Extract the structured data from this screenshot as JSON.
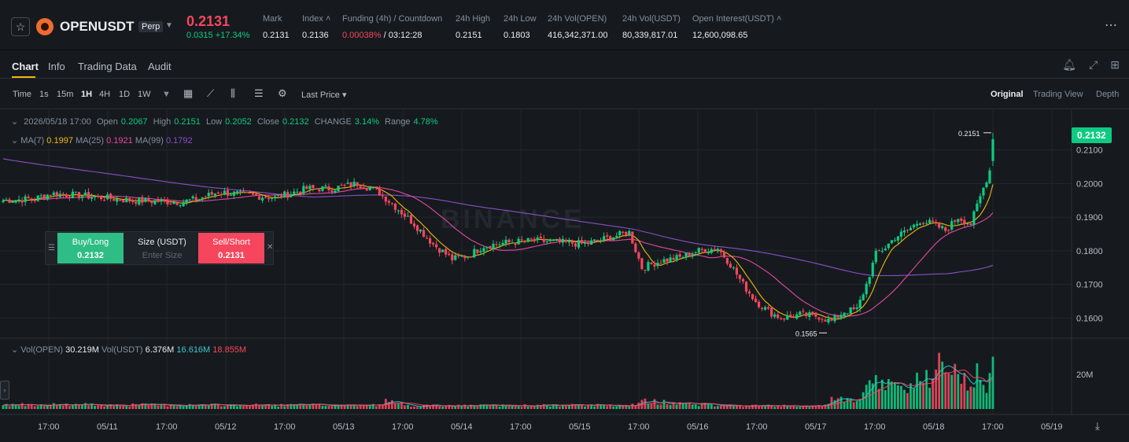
{
  "header": {
    "symbol": "OPENUSDT",
    "contract": "Perp",
    "last_price": "0.2131",
    "change": "0.0315 +17.34%",
    "stats": [
      {
        "label": "Mark",
        "value": "0.2131"
      },
      {
        "label": "Index ˄",
        "value": "0.2136"
      },
      {
        "label": "Funding (4h) / Countdown",
        "value_red": "0.00038%",
        "value": " / 03:12:28"
      },
      {
        "label": "24h High",
        "value": "0.2151"
      },
      {
        "label": "24h Low",
        "value": "0.1803"
      },
      {
        "label": "24h Vol(OPEN)",
        "value": "416,342,371.00"
      },
      {
        "label": "24h Vol(USDT)",
        "value": "80,339,817.01"
      },
      {
        "label": "Open Interest(USDT) ˄",
        "value": "12,600,098.65"
      }
    ],
    "more_icon": "more-dots-icon"
  },
  "tabs": [
    "Chart",
    "Info",
    "Trading Data",
    "Audit"
  ],
  "toolbar": {
    "intervals": [
      "Time",
      "1s",
      "15m",
      "1H",
      "4H",
      "1D",
      "1W"
    ],
    "active_interval": "1H",
    "price_type": "Last Price",
    "views": [
      "Original",
      "Trading View",
      "Depth"
    ],
    "active_view": "Original"
  },
  "legend": {
    "date": "2026/05/18 17:00",
    "open_label": "Open",
    "open": "0.2067",
    "high_label": "High",
    "high": "0.2151",
    "low_label": "Low",
    "low": "0.2052",
    "close_label": "Close",
    "close": "0.2132",
    "change_label": "CHANGE",
    "change": "3.14%",
    "range_label": "Range",
    "range": "4.78%",
    "ma7_label": "MA(7)",
    "ma7": "0.1997",
    "ma25_label": "MA(25)",
    "ma25": "0.1921",
    "ma99_label": "MA(99)",
    "ma99": "0.1792",
    "vol_open_label": "Vol(OPEN)",
    "vol_open": "30.219M",
    "vol_usdt_label": "Vol(USDT)",
    "vol_usdt": "6.376M",
    "vol_ma1": "16.616M",
    "vol_ma2": "18.855M"
  },
  "order": {
    "buy_label": "Buy/Long",
    "buy_price": "0.2132",
    "size_label": "Size (USDT)",
    "size_placeholder": "Enter Size",
    "sell_label": "Sell/Short",
    "sell_price": "0.2131"
  },
  "current_price_tag": "0.2132",
  "watermark": "BINANCE",
  "colors": {
    "up": "#0ecb81",
    "down": "#f6465d",
    "ma7": "#f0b90b",
    "ma25": "#e549a3",
    "ma99": "#8b4fc8",
    "accent": "#f0b90b"
  },
  "chart_data": {
    "type": "candlestick",
    "x_labels": [
      "17:00",
      "05/11",
      "17:00",
      "05/12",
      "17:00",
      "05/13",
      "17:00",
      "05/14",
      "17:00",
      "05/15",
      "17:00",
      "05/16",
      "17:00",
      "05/17",
      "17:00",
      "05/18",
      "17:00",
      "05/19"
    ],
    "y_ticks": [
      0.16,
      0.17,
      0.18,
      0.19,
      0.2,
      0.21
    ],
    "y_tick_labels": [
      "0.1600",
      "0.1700",
      "0.1800",
      "0.1900",
      "0.2000",
      "0.2100"
    ],
    "ylim": [
      0.154,
      0.2195
    ],
    "volume_tick": "20M",
    "volume_tick_value": 20,
    "volume_max": 30,
    "high_marker": "0.2151",
    "low_marker": "0.1565",
    "close_anchors": [
      [
        0,
        0.195
      ],
      [
        10,
        0.1955
      ],
      [
        15,
        0.197
      ],
      [
        24,
        0.1965
      ],
      [
        40,
        0.195
      ],
      [
        56,
        0.1945
      ],
      [
        62,
        0.1955
      ],
      [
        68,
        0.1975
      ],
      [
        78,
        0.1965
      ],
      [
        86,
        0.1958
      ],
      [
        96,
        0.1985
      ],
      [
        104,
        0.1985
      ],
      [
        112,
        0.2
      ],
      [
        118,
        0.198
      ],
      [
        123,
        0.194
      ],
      [
        130,
        0.188
      ],
      [
        136,
        0.182
      ],
      [
        142,
        0.1775
      ],
      [
        147,
        0.1785
      ],
      [
        152,
        0.1815
      ],
      [
        160,
        0.1825
      ],
      [
        168,
        0.183
      ],
      [
        176,
        0.1825
      ],
      [
        184,
        0.182
      ],
      [
        192,
        0.184
      ],
      [
        198,
        0.1855
      ],
      [
        202,
        0.175
      ],
      [
        208,
        0.177
      ],
      [
        214,
        0.178
      ],
      [
        220,
        0.18
      ],
      [
        226,
        0.1808
      ],
      [
        230,
        0.176
      ],
      [
        234,
        0.17
      ],
      [
        238,
        0.165
      ],
      [
        242,
        0.162
      ],
      [
        246,
        0.16
      ],
      [
        252,
        0.161
      ],
      [
        258,
        0.1605
      ],
      [
        262,
        0.159
      ],
      [
        266,
        0.162
      ],
      [
        270,
        0.1625
      ],
      [
        273,
        0.17
      ],
      [
        276,
        0.179
      ],
      [
        279,
        0.181
      ],
      [
        282,
        0.184
      ],
      [
        286,
        0.186
      ],
      [
        290,
        0.189
      ],
      [
        294,
        0.188
      ],
      [
        298,
        0.186
      ],
      [
        302,
        0.19
      ],
      [
        306,
        0.188
      ],
      [
        309,
        0.196
      ],
      [
        312,
        0.204
      ],
      [
        313,
        0.2132
      ]
    ],
    "candle_count": 314,
    "volume_anchors": [
      [
        0,
        3
      ],
      [
        60,
        2.5
      ],
      [
        120,
        2.5
      ],
      [
        121,
        5
      ],
      [
        130,
        2
      ],
      [
        200,
        2.5
      ],
      [
        202,
        5
      ],
      [
        230,
        2
      ],
      [
        260,
        2
      ],
      [
        262,
        7
      ],
      [
        270,
        4
      ],
      [
        273,
        12
      ],
      [
        276,
        18
      ],
      [
        282,
        14
      ],
      [
        288,
        17
      ],
      [
        293,
        20
      ],
      [
        296,
        26
      ],
      [
        299,
        18
      ],
      [
        302,
        25
      ],
      [
        305,
        16
      ],
      [
        308,
        22
      ],
      [
        311,
        12
      ],
      [
        313,
        30
      ]
    ]
  }
}
